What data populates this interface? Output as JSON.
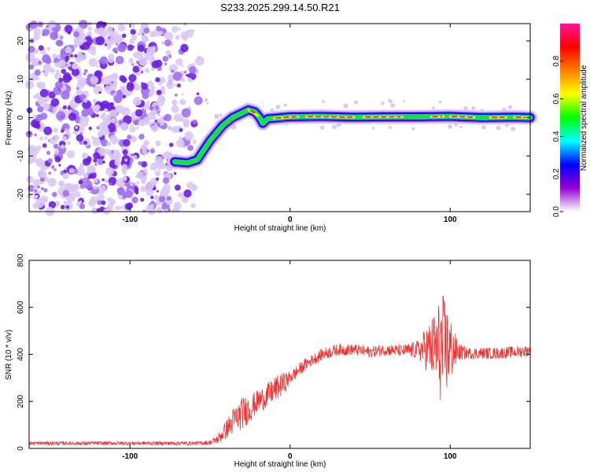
{
  "title": "S233.2025.299.14.50.R21",
  "chart_data": [
    {
      "type": "heatmap",
      "name": "spectrogram",
      "xlabel": "Height of straight line (km)",
      "ylabel": "Frequency (Hz)",
      "xlim": [
        -163,
        150
      ],
      "ylim": [
        -24.5,
        24.5
      ],
      "xticks": [
        -100,
        0,
        100
      ],
      "xtick_labels": [
        "-100",
        "0",
        "100"
      ],
      "yticks": [
        20,
        10,
        0,
        -10,
        -20
      ],
      "ytick_labels": [
        "20",
        "10",
        "0",
        "-10",
        "-20"
      ],
      "noise_region_x": [
        -163,
        -53
      ],
      "ridge": {
        "x": [
          -72,
          -64,
          -58,
          -50,
          -42,
          -36,
          -30,
          -26,
          -22,
          -19,
          -17,
          -14,
          0,
          20,
          40,
          60,
          80,
          100,
          120,
          140,
          150
        ],
        "y": [
          -11.5,
          -11.8,
          -11.0,
          -6.0,
          -2.0,
          0.0,
          1.2,
          2.0,
          1.5,
          0.0,
          -1.5,
          -0.3,
          0.2,
          0.3,
          0.1,
          0.2,
          0.2,
          0.3,
          0.0,
          0.1,
          0.0
        ]
      },
      "colorbar": {
        "label": "Normalized spectral amplitude",
        "range": [
          0.0,
          1.0
        ],
        "ticks": [
          0.0,
          0.2,
          0.4,
          0.6,
          0.8
        ],
        "tick_labels": [
          "0.0",
          "0.2",
          "0.4",
          "0.6",
          "0.8"
        ],
        "colors": [
          "#ffffff",
          "#9400d3",
          "#0000ff",
          "#00ffff",
          "#00ff00",
          "#ffff00",
          "#ff7f00",
          "#ff0000",
          "#ff1493"
        ]
      }
    },
    {
      "type": "line",
      "name": "snr",
      "xlabel": "Height of straight line (km)",
      "ylabel": "SNR (10 * v/v)",
      "xlim": [
        -163,
        150
      ],
      "ylim": [
        0,
        800
      ],
      "xticks": [
        -100,
        0,
        100
      ],
      "xtick_labels": [
        "-100",
        "0",
        "100"
      ],
      "yticks": [
        0,
        200,
        400,
        600,
        800
      ],
      "ytick_labels": [
        "0",
        "200",
        "400",
        "600",
        "800"
      ],
      "color": "#ee3333",
      "x": [
        -163,
        -120,
        -80,
        -60,
        -50,
        -45,
        -40,
        -35,
        -30,
        -25,
        -20,
        -15,
        -10,
        -5,
        0,
        10,
        20,
        30,
        40,
        50,
        60,
        70,
        80,
        90,
        95,
        100,
        105,
        110,
        120,
        130,
        140,
        150
      ],
      "values": [
        22,
        22,
        22,
        22,
        25,
        40,
        80,
        120,
        150,
        170,
        200,
        220,
        250,
        270,
        300,
        360,
        400,
        420,
        420,
        410,
        420,
        415,
        420,
        430,
        420,
        420,
        410,
        405,
        405,
        405,
        410,
        415
      ],
      "jitter": [
        8,
        8,
        8,
        8,
        10,
        20,
        40,
        60,
        70,
        60,
        50,
        50,
        55,
        50,
        30,
        25,
        25,
        25,
        25,
        25,
        25,
        25,
        40,
        150,
        250,
        150,
        40,
        25,
        25,
        25,
        25,
        25
      ]
    }
  ]
}
